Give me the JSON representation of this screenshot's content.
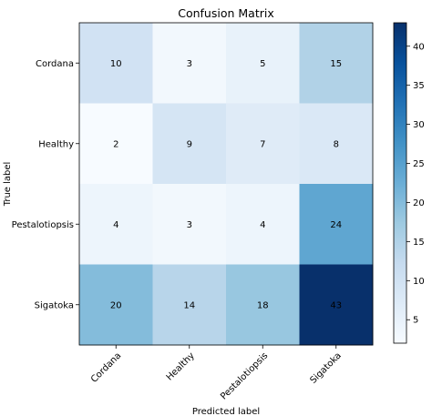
{
  "chart_data": {
    "type": "heatmap",
    "title": "Confusion Matrix",
    "xlabel": "Predicted label",
    "ylabel": "True label",
    "x_categories": [
      "Cordana",
      "Healthy",
      "Pestalotiopsis",
      "Sigatoka"
    ],
    "y_categories": [
      "Cordana",
      "Healthy",
      "Pestalotiopsis",
      "Sigatoka"
    ],
    "matrix": [
      [
        10,
        3,
        5,
        15
      ],
      [
        2,
        9,
        7,
        8
      ],
      [
        4,
        3,
        4,
        24
      ],
      [
        20,
        14,
        18,
        43
      ]
    ],
    "colormap": "Blues",
    "color_range": [
      2,
      43
    ],
    "colorbar_ticks": [
      5,
      10,
      15,
      20,
      25,
      30,
      35,
      40
    ]
  }
}
